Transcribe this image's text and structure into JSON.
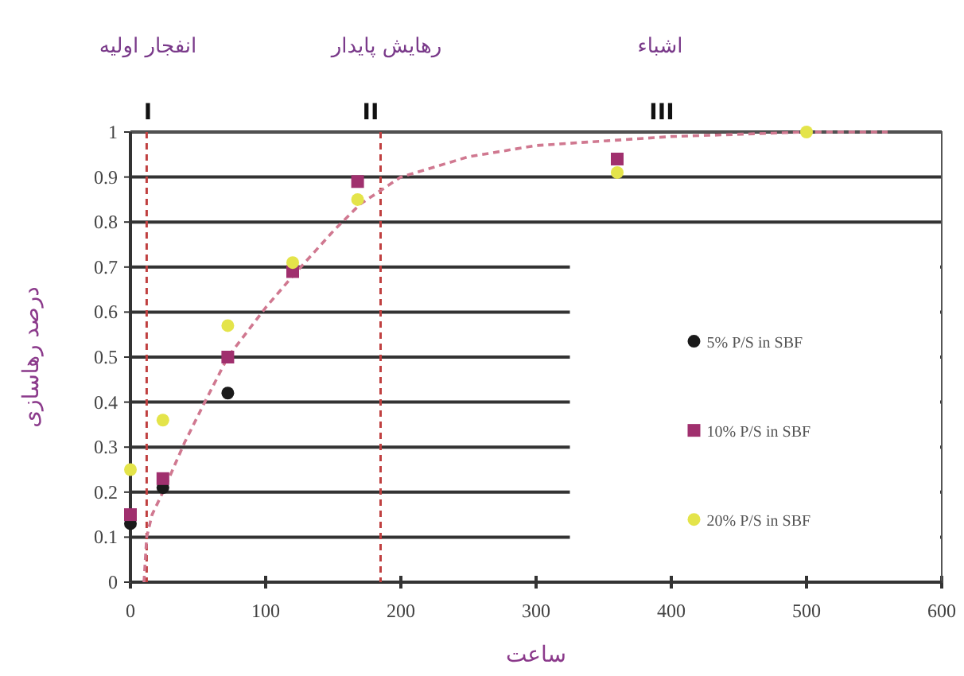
{
  "chart_data": {
    "type": "scatter",
    "xlabel": "ساعت",
    "ylabel": "درصد رهاسازی",
    "x": [
      0,
      24,
      72,
      120,
      168,
      360,
      500
    ],
    "xlim": [
      0,
      600
    ],
    "xticks": [
      0,
      100,
      200,
      300,
      400,
      500,
      600
    ],
    "ylim": [
      0,
      1
    ],
    "yticks": [
      0,
      0.1,
      0.2,
      0.3,
      0.4,
      0.5,
      0.6,
      0.7,
      0.8,
      0.9,
      1
    ],
    "grid": "y",
    "legend": "right",
    "series": [
      {
        "name": "5% P/S in SBF",
        "color": "#1a1a1a",
        "marker": "circle",
        "values": [
          0.13,
          0.21,
          0.42,
          null,
          null,
          null,
          null
        ]
      },
      {
        "name": "10% P/S in SBF",
        "color": "#a0306e",
        "marker": "square",
        "values": [
          0.15,
          0.23,
          0.5,
          0.69,
          0.89,
          0.94,
          null
        ]
      },
      {
        "name": "20% P/S in SBF",
        "color": "#e4e44a",
        "marker": "circle",
        "values": [
          0.25,
          0.36,
          0.57,
          0.71,
          0.85,
          0.91,
          1.0
        ]
      },
      {
        "type": "line",
        "color": "#d07890",
        "line_style": "dashed",
        "marker": "none",
        "x": [
          10,
          12,
          16,
          24,
          40,
          55,
          72,
          100,
          120,
          150,
          170,
          200,
          250,
          300,
          350,
          400,
          500,
          560
        ],
        "values": [
          0,
          0.1,
          0.15,
          0.2,
          0.31,
          0.4,
          0.5,
          0.61,
          0.68,
          0.78,
          0.84,
          0.9,
          0.945,
          0.97,
          0.98,
          0.99,
          1.0,
          1.0
        ]
      }
    ],
    "ref_lines": [
      {
        "axis": "x",
        "value": 12,
        "color": "#c04040",
        "line_style": "dashed"
      },
      {
        "axis": "x",
        "value": 185,
        "color": "#c04040",
        "line_style": "dashed"
      }
    ],
    "annotations": [
      "I",
      "II",
      "III",
      "انفجار اولیه",
      "رهایش پایدار",
      "اشباء"
    ]
  }
}
